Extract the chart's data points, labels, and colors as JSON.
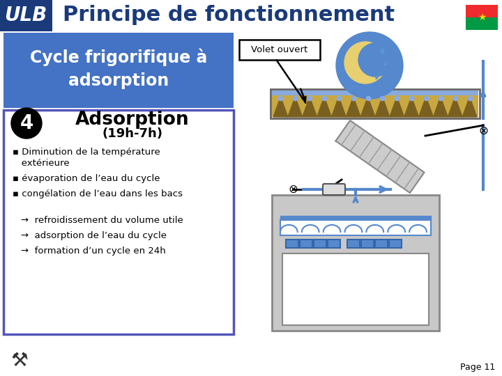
{
  "title": "Principe de fonctionnement",
  "ulb_text": "ULB",
  "ulb_bg": "#1a3a7a",
  "subtitle": "Cycle frigorifique à\nadsorption",
  "subtitle_bg": "#4472c4",
  "volet_label": "Volet ouvert",
  "step_number": "4",
  "step_title": "Adsorption",
  "step_subtitle": "(19h-7h)",
  "bullet1": "▪ Diminution de la température\n   extérieure",
  "bullet2": "▪ évaporation de l’eau du cycle",
  "bullet3": "▪ congélation de l’eau dans les bacs",
  "arrow1": "→  refroidissement du volume utile",
  "arrow2": "→  adsorption de l’eau du cycle",
  "arrow3": "→  formation d’un cycle en 24h",
  "page_label": "Page 11",
  "bg_color": "#ffffff",
  "header_bg": "#1a3a7a",
  "step_box_border": "#5555bb",
  "step_box_bg": "#ffffff",
  "subtitle_text_color": "#ffffff",
  "moon_circle_color": "#5588cc",
  "moon_color": "#e8d070",
  "star_color": "#5599dd",
  "collector_fill": "#c8a840",
  "collector_border": "#666666",
  "pipe_color": "#5588cc",
  "coil_fill": "#cccccc",
  "coil_border": "#888888",
  "evap_fill": "#c8c8c8",
  "evap_border": "#888888",
  "ice_color": "#5588cc",
  "valve_color": "#000000"
}
